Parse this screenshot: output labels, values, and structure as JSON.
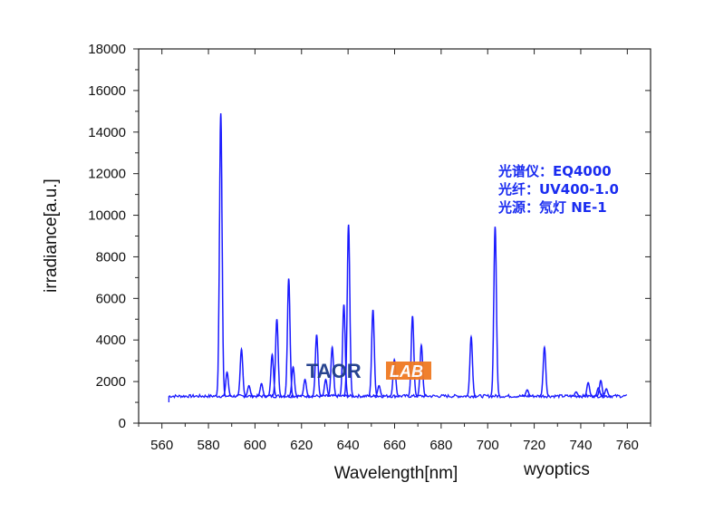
{
  "chart_data": {
    "type": "line",
    "xlabel": "Wavelength[nm]",
    "ylabel": "irradiance[a.u.]",
    "xlim": [
      550,
      770
    ],
    "ylim": [
      0,
      18000
    ],
    "x_ticks": [
      560,
      580,
      600,
      620,
      640,
      660,
      680,
      700,
      720,
      740,
      760
    ],
    "y_ticks": [
      0,
      2000,
      4000,
      6000,
      8000,
      10000,
      12000,
      14000,
      16000,
      18000
    ],
    "grid": false,
    "line_color": "#1a1aff",
    "x_range_of_data": [
      563,
      760
    ],
    "baseline": 1300,
    "series": [
      {
        "peaks": [
          {
            "x": 585.3,
            "y": 14900
          },
          {
            "x": 588.0,
            "y": 2450
          },
          {
            "x": 594.2,
            "y": 3550
          },
          {
            "x": 597.4,
            "y": 1800
          },
          {
            "x": 602.8,
            "y": 1900
          },
          {
            "x": 607.4,
            "y": 3300
          },
          {
            "x": 609.4,
            "y": 5000
          },
          {
            "x": 614.5,
            "y": 6950
          },
          {
            "x": 616.4,
            "y": 2700
          },
          {
            "x": 621.5,
            "y": 2100
          },
          {
            "x": 626.5,
            "y": 4250
          },
          {
            "x": 630.4,
            "y": 2100
          },
          {
            "x": 633.2,
            "y": 3650
          },
          {
            "x": 638.2,
            "y": 5700
          },
          {
            "x": 640.2,
            "y": 9550
          },
          {
            "x": 650.7,
            "y": 5450
          },
          {
            "x": 653.3,
            "y": 1800
          },
          {
            "x": 659.9,
            "y": 3050
          },
          {
            "x": 667.7,
            "y": 5150
          },
          {
            "x": 671.5,
            "y": 3750
          },
          {
            "x": 692.9,
            "y": 4150
          },
          {
            "x": 703.2,
            "y": 9450
          },
          {
            "x": 717.0,
            "y": 1600
          },
          {
            "x": 724.4,
            "y": 3650
          },
          {
            "x": 738.0,
            "y": 1500
          },
          {
            "x": 743.2,
            "y": 1950
          },
          {
            "x": 747.6,
            "y": 1700
          },
          {
            "x": 748.6,
            "y": 2050
          },
          {
            "x": 751.0,
            "y": 1650
          }
        ]
      }
    ],
    "annotations": [
      "光谱仪：EQ4000",
      "光纤：UV400-1.0",
      "光源：氖灯 NE-1"
    ],
    "credit": "wyoptics"
  },
  "watermark": {
    "part1": "TAOR",
    "part2": "LAB",
    "color1": "#1d3a8a",
    "color2": "#f07a22"
  }
}
